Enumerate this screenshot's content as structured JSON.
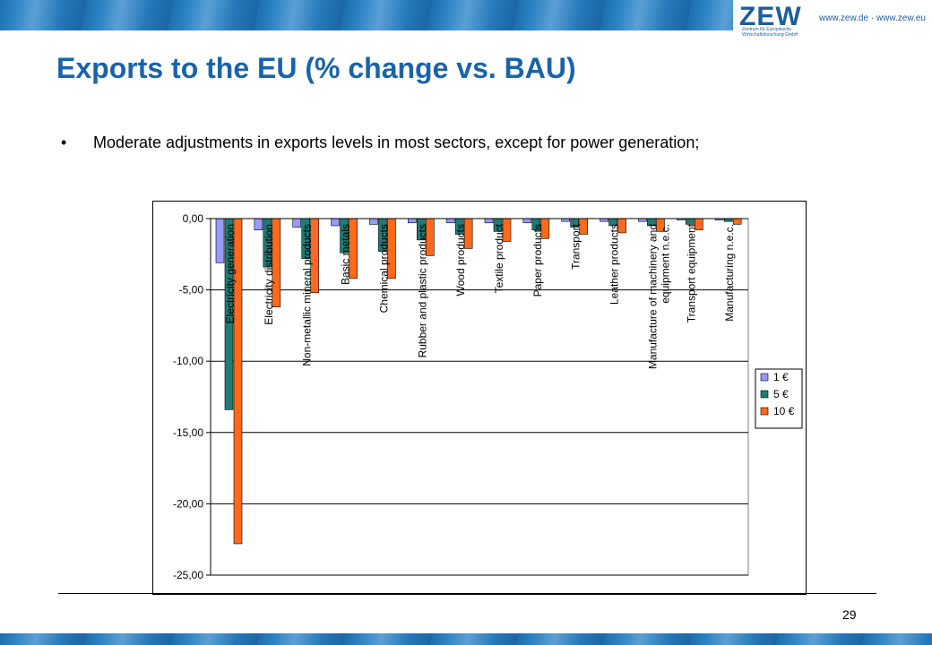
{
  "header": {
    "logo_text": "ZEW",
    "logo_subtext": "Zentrum für Europäische Wirtschaftsforschung GmbH",
    "url_text": "www.zew.de · www.zew.eu"
  },
  "slide": {
    "title": "Exports to the EU (% change vs. BAU)",
    "bullet": "Moderate adjustments in exports levels in most sectors, except for power generation;",
    "page_number": "29"
  },
  "colors": {
    "title": "#1a63a9",
    "series_1": "#9999ff",
    "series_5": "#1f7b74",
    "series_10": "#ff6a1a",
    "plot_bg": "#ffffff"
  },
  "chart_data": {
    "type": "bar",
    "categories": [
      "Electricity generation",
      "Electricity distribution",
      "Non-metallic mineral products",
      "Basic metals",
      "Chemical products",
      "Rubber and plastic products",
      "Wood products",
      "Textile product",
      "Paper products",
      "Transport",
      "Leather products",
      "Manufacture of machinery and equipment n.e.c.",
      "Transport equipment",
      "Manufacturing n.e.c."
    ],
    "series": [
      {
        "name": "1 €",
        "values": [
          -3.1,
          -0.8,
          -0.6,
          -0.5,
          -0.4,
          -0.3,
          -0.3,
          -0.3,
          -0.3,
          -0.2,
          -0.2,
          -0.2,
          -0.1,
          -0.1
        ]
      },
      {
        "name": "5 €",
        "values": [
          -13.4,
          -3.4,
          -2.8,
          -2.4,
          -2.3,
          -1.5,
          -1.1,
          -0.9,
          -0.8,
          -0.6,
          -0.5,
          -0.5,
          -0.4,
          -0.2
        ]
      },
      {
        "name": "10 €",
        "values": [
          -22.8,
          -6.2,
          -5.2,
          -4.2,
          -4.2,
          -2.6,
          -2.1,
          -1.6,
          -1.4,
          -1.1,
          -1.0,
          -0.9,
          -0.8,
          -0.4
        ]
      }
    ],
    "yticks": [
      "0,00",
      "-5,00",
      "-10,00",
      "-15,00",
      "-20,00",
      "-25,00"
    ],
    "ylim": [
      -25,
      0
    ],
    "grid": true,
    "legend_position": "right"
  }
}
